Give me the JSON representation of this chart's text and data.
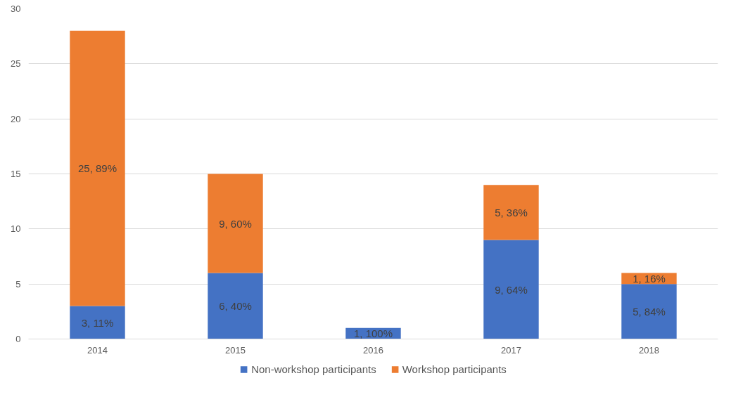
{
  "chart_data": {
    "type": "bar",
    "stacked": true,
    "categories": [
      "2014",
      "2015",
      "2016",
      "2017",
      "2018"
    ],
    "series": [
      {
        "name": "Non-workshop participants",
        "color": "#4472c4",
        "values": [
          3,
          6,
          1,
          9,
          5
        ],
        "value_labels": [
          "3, 11%",
          "6, 40%",
          "1, 100%",
          "9, 64%",
          "5, 84%"
        ]
      },
      {
        "name": "Workshop participants",
        "color": "#ed7d31",
        "values": [
          25,
          9,
          0,
          5,
          1
        ],
        "value_labels": [
          "25, 89%",
          "9, 60%",
          null,
          "5, 36%",
          "1, 16%"
        ]
      }
    ],
    "ylim": [
      0,
      30
    ],
    "yticks": [
      0,
      5,
      10,
      15,
      20,
      25,
      30
    ],
    "grid": "y",
    "legend": "bottom"
  }
}
